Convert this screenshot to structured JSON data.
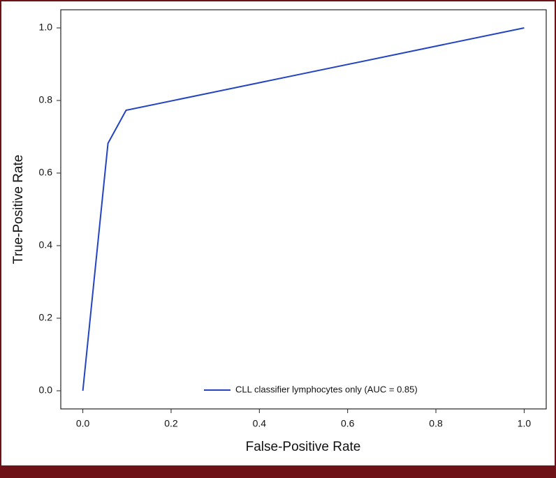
{
  "chart_data": {
    "type": "line",
    "x_label": "False-Positive Rate",
    "y_label": "True-Positive Rate",
    "x": [
      0,
      0.057,
      0.098,
      1
    ],
    "series": [
      {
        "name": "CLL classifier lymphocytes only (AUC = 0.85)",
        "color": "#2344c0",
        "values": [
          0,
          0.682,
          0.773,
          1
        ]
      }
    ],
    "xlim": [
      -0.05,
      1.05
    ],
    "ylim": [
      -0.05,
      1.05
    ],
    "xticks": [
      {
        "value": 0,
        "label": "0.0"
      },
      0.2,
      0.4,
      0.6,
      0.8,
      {
        "value": 1,
        "label": "1.0"
      }
    ],
    "yticks": [
      {
        "value": 0,
        "label": "0.0"
      },
      0.2,
      0.4,
      0.6,
      0.8,
      {
        "value": 1,
        "label": "1.0"
      }
    ],
    "grid": false,
    "legend": "lower center"
  }
}
